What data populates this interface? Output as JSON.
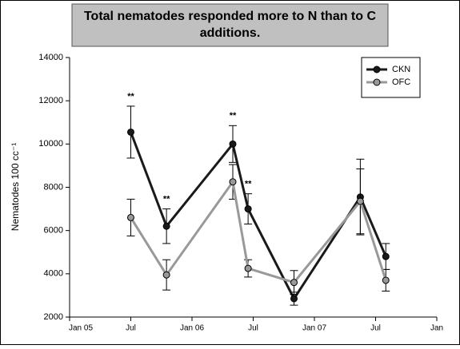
{
  "chart_data": {
    "type": "line",
    "title": "Total nematodes responded more to N than to C additions.",
    "ylabel": "Nematodes 100 cc⁻¹",
    "x": [
      6,
      9.5,
      16,
      17.5,
      22,
      28.5,
      31
    ],
    "series": [
      {
        "name": "CKN",
        "color": "#1a1a1a",
        "values": [
          10550,
          6200,
          10000,
          7000,
          2850,
          7550,
          4800
        ],
        "errors": [
          1200,
          800,
          850,
          700,
          300,
          1750,
          600
        ]
      },
      {
        "name": "OFC",
        "color": "#999999",
        "values": [
          6600,
          3950,
          8250,
          4250,
          3600,
          7350,
          3700
        ],
        "errors": [
          850,
          700,
          800,
          400,
          550,
          1500,
          500
        ]
      }
    ],
    "annotations": [
      "**",
      "**",
      "**",
      "**"
    ],
    "xlim": [
      0,
      36
    ],
    "xticks": [
      {
        "value": 0,
        "label": "Jan 05"
      },
      {
        "value": 6,
        "label": "Jul"
      },
      {
        "value": 12,
        "label": "Jan 06"
      },
      {
        "value": 18,
        "label": "Jul"
      },
      {
        "value": 24,
        "label": "Jan 07"
      },
      {
        "value": 30,
        "label": "Jul"
      },
      {
        "value": 36,
        "label": "Jan"
      }
    ],
    "ylim": [
      2000,
      14000
    ],
    "yticks": [
      2000,
      4000,
      6000,
      8000,
      10000,
      12000,
      14000
    ],
    "legend": "top-right"
  }
}
